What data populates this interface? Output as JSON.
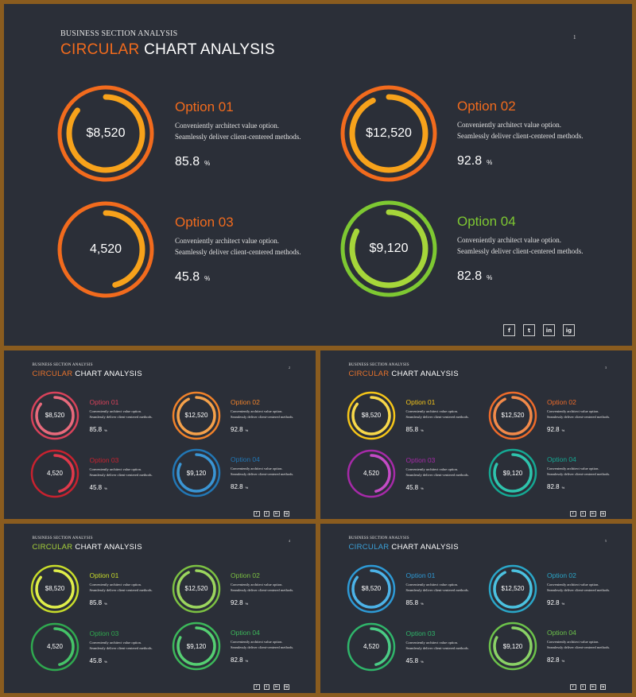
{
  "slides": [
    {
      "kicker": "BUSINESS SECTION ANALYSIS",
      "title_accent": "CIRCULAR",
      "title_rest": " CHART ANALYSIS",
      "page": "1",
      "accent_color": "#f26b1d",
      "options": [
        {
          "name": "Option 01",
          "amount": "$8,520",
          "line1": "Conveniently architect value option.",
          "line2": "Seamlessly deliver client-centered methods.",
          "pct": "85.8",
          "unit": "%",
          "color": "#f26b1d",
          "color2": "#f7a21b",
          "progress": 0.858
        },
        {
          "name": "Option 02",
          "amount": "$12,520",
          "line1": "Conveniently architect value option.",
          "line2": "Seamlessly deliver client-centered methods.",
          "pct": "92.8",
          "unit": "%",
          "color": "#f26b1d",
          "color2": "#f7a21b",
          "progress": 0.928
        },
        {
          "name": "Option 03",
          "amount": "4,520",
          "line1": "Conveniently architect value option.",
          "line2": "Seamlessly deliver client-centered methods.",
          "pct": "45.8",
          "unit": "%",
          "color": "#f26b1d",
          "color2": "#f7a21b",
          "progress": 0.458
        },
        {
          "name": "Option 04",
          "amount": "$9,120",
          "line1": "Conveniently architect value option.",
          "line2": "Seamlessly deliver client-centered methods.",
          "pct": "82.8",
          "unit": "%",
          "color": "#7ec832",
          "color2": "#a6d63a",
          "progress": 0.828
        }
      ],
      "socials": [
        "f",
        "t",
        "in",
        "ig"
      ]
    },
    {
      "kicker": "BUSINESS SECTION ANALYSIS",
      "title_accent": "CIRCULAR",
      "title_rest": " CHART ANALYSIS",
      "page": "2",
      "accent_color": "#e8732c",
      "options": [
        {
          "name": "Option 01",
          "amount": "$8,520",
          "line1": "Conveniently architect value option.",
          "line2": "Seamlessly deliver client-centered methods.",
          "pct": "85.8",
          "unit": "%",
          "color": "#d9425a",
          "color2": "#e86a7c",
          "progress": 0.858
        },
        {
          "name": "Option 02",
          "amount": "$12,520",
          "line1": "Conveniently architect value option.",
          "line2": "Seamlessly deliver client-centered methods.",
          "pct": "92.8",
          "unit": "%",
          "color": "#f0822a",
          "color2": "#f5a14a",
          "progress": 0.928
        },
        {
          "name": "Option 03",
          "amount": "4,520",
          "line1": "Conveniently architect value option.",
          "line2": "Seamlessly deliver client-centered methods.",
          "pct": "45.8",
          "unit": "%",
          "color": "#c8222f",
          "color2": "#e0394a",
          "progress": 0.458
        },
        {
          "name": "Option 04",
          "amount": "$9,120",
          "line1": "Conveniently architect value option.",
          "line2": "Seamlessly deliver client-centered methods.",
          "pct": "82.8",
          "unit": "%",
          "color": "#2277b5",
          "color2": "#3a95d4",
          "progress": 0.828
        }
      ],
      "socials": [
        "f",
        "t",
        "in",
        "ig"
      ]
    },
    {
      "kicker": "BUSINESS SECTION ANALYSIS",
      "title_accent": "CIRCULAR",
      "title_rest": " CHART ANALYSIS",
      "page": "3",
      "accent_color": "#e8732c",
      "options": [
        {
          "name": "Option 01",
          "amount": "$8,520",
          "line1": "Conveniently architect value option.",
          "line2": "Seamlessly deliver client-centered methods.",
          "pct": "85.8",
          "unit": "%",
          "color": "#f5c518",
          "color2": "#f8d84a",
          "progress": 0.858
        },
        {
          "name": "Option 02",
          "amount": "$12,520",
          "line1": "Conveniently architect value option.",
          "line2": "Seamlessly deliver client-centered methods.",
          "pct": "92.8",
          "unit": "%",
          "color": "#ee6b2a",
          "color2": "#f28a4a",
          "progress": 0.928
        },
        {
          "name": "Option 03",
          "amount": "4,520",
          "line1": "Conveniently architect value option.",
          "line2": "Seamlessly deliver client-centered methods.",
          "pct": "45.8",
          "unit": "%",
          "color": "#a62aa8",
          "color2": "#c44bc6",
          "progress": 0.458
        },
        {
          "name": "Option 04",
          "amount": "$9,120",
          "line1": "Conveniently architect value option.",
          "line2": "Seamlessly deliver client-centered methods.",
          "pct": "82.8",
          "unit": "%",
          "color": "#15a893",
          "color2": "#2ec4ad",
          "progress": 0.828
        }
      ],
      "socials": [
        "f",
        "t",
        "in",
        "ig"
      ]
    },
    {
      "kicker": "BUSINESS SECTION ANALYSIS",
      "title_accent": "CIRCULAR",
      "title_rest": " CHART ANALYSIS",
      "page": "4",
      "accent_color": "#a7d13a",
      "options": [
        {
          "name": "Option 01",
          "amount": "$8,520",
          "line1": "Conveniently architect value option.",
          "line2": "Seamlessly deliver client-centered methods.",
          "pct": "85.8",
          "unit": "%",
          "color": "#c8dc2a",
          "color2": "#e0ee4a",
          "progress": 0.858
        },
        {
          "name": "Option 02",
          "amount": "$12,520",
          "line1": "Conveniently architect value option.",
          "line2": "Seamlessly deliver client-centered methods.",
          "pct": "92.8",
          "unit": "%",
          "color": "#7cc142",
          "color2": "#9cd65e",
          "progress": 0.928
        },
        {
          "name": "Option 03",
          "amount": "4,520",
          "line1": "Conveniently architect value option.",
          "line2": "Seamlessly deliver client-centered methods.",
          "pct": "45.8",
          "unit": "%",
          "color": "#2fa84f",
          "color2": "#45c368",
          "progress": 0.458
        },
        {
          "name": "Option 04",
          "amount": "$9,120",
          "line1": "Conveniently architect value option.",
          "line2": "Seamlessly deliver client-centered methods.",
          "pct": "82.8",
          "unit": "%",
          "color": "#3cb85a",
          "color2": "#55cf72",
          "progress": 0.828
        }
      ],
      "socials": [
        "f",
        "t",
        "in",
        "ig"
      ]
    },
    {
      "kicker": "BUSINESS SECTION ANALYSIS",
      "title_accent": "CIRCULAR",
      "title_rest": " CHART ANALYSIS",
      "page": "5",
      "accent_color": "#3aa0d8",
      "options": [
        {
          "name": "Option 01",
          "amount": "$8,520",
          "line1": "Conveniently architect value option.",
          "line2": "Seamlessly deliver client-centered methods.",
          "pct": "85.8",
          "unit": "%",
          "color": "#2d9ad6",
          "color2": "#4cb3e8",
          "progress": 0.858
        },
        {
          "name": "Option 02",
          "amount": "$12,520",
          "line1": "Conveniently architect value option.",
          "line2": "Seamlessly deliver client-centered methods.",
          "pct": "92.8",
          "unit": "%",
          "color": "#2aa6c8",
          "color2": "#4bc2e0",
          "progress": 0.928
        },
        {
          "name": "Option 03",
          "amount": "4,520",
          "line1": "Conveniently architect value option.",
          "line2": "Seamlessly deliver client-centered methods.",
          "pct": "45.8",
          "unit": "%",
          "color": "#2fb56a",
          "color2": "#4acb85",
          "progress": 0.458
        },
        {
          "name": "Option 04",
          "amount": "$9,120",
          "line1": "Conveniently architect value option.",
          "line2": "Seamlessly deliver client-centered methods.",
          "pct": "82.8",
          "unit": "%",
          "color": "#6cc24a",
          "color2": "#8ad266",
          "progress": 0.828
        }
      ],
      "socials": [
        "f",
        "t",
        "in",
        "ig"
      ]
    }
  ]
}
